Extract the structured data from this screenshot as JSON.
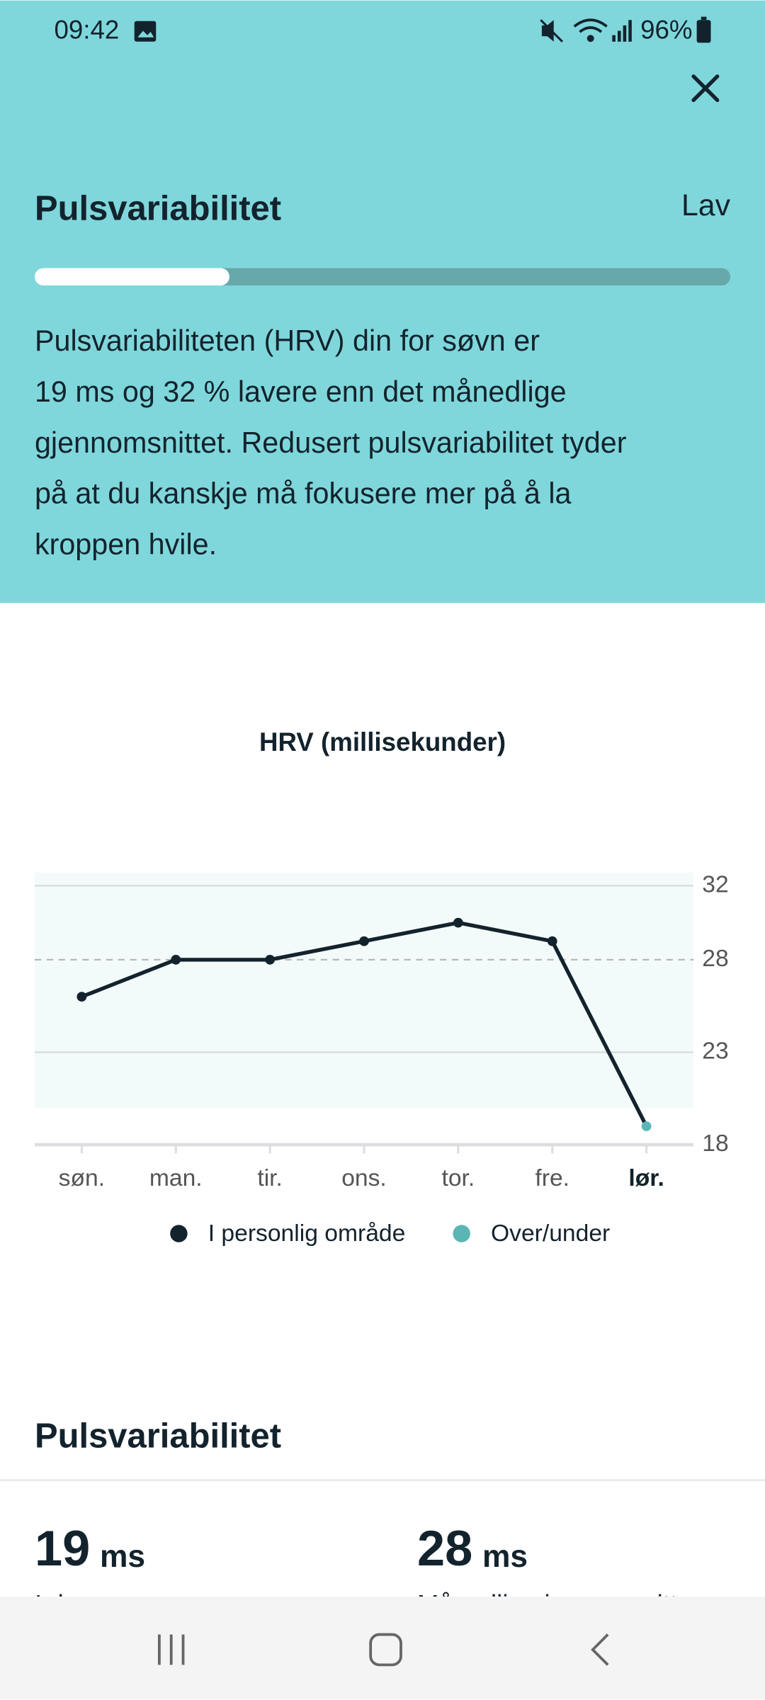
{
  "status_bar": {
    "time": "09:42",
    "battery": "96%"
  },
  "header": {
    "title": "Pulsvariabilitet",
    "level": "Lav",
    "progress": 0.28,
    "description": [
      "Pulsvariabiliteten (HRV) din for søvn er",
      "19 ms og 32 % lavere enn det månedlige",
      "gjennomsnittet. Redusert pulsvariabilitet tyder",
      "på at du kanskje må fokusere mer på å la",
      "kroppen hvile."
    ]
  },
  "chart_data": {
    "type": "line",
    "title": "HRV (millisekunder)",
    "categories": [
      "søn.",
      "man.",
      "tir.",
      "ons.",
      "tor.",
      "fre.",
      "lør."
    ],
    "series": [
      {
        "values": [
          26,
          28,
          28,
          29,
          30,
          29,
          19
        ],
        "color": "#13232d",
        "point_legend": [
          0,
          0,
          0,
          0,
          0,
          0,
          1
        ]
      }
    ],
    "legend": [
      {
        "name": "I personlig område",
        "color": "#13232d"
      },
      {
        "name": "Over/under",
        "color": "#5bb5b5"
      }
    ],
    "ylim": [
      18,
      32.7
    ],
    "yticks": [
      18,
      23,
      28,
      32
    ],
    "reference_line": 28,
    "band": [
      20,
      32.7
    ],
    "grid": true
  },
  "section": {
    "title": "Pulsvariabilitet",
    "stats": [
      {
        "value": 19,
        "unit": "ms",
        "label": "I dag"
      },
      {
        "value": 28,
        "unit": "ms",
        "label": "Månedlig gjennomsnitt"
      }
    ]
  }
}
